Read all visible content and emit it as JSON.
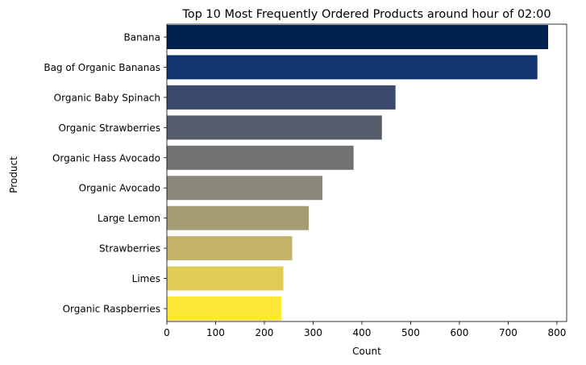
{
  "chart_data": {
    "type": "bar",
    "orientation": "horizontal",
    "title": "Top 10 Most Frequently Ordered Products around hour of 02:00",
    "xlabel": "Count",
    "ylabel": "Product",
    "xlim": [
      0,
      820
    ],
    "x_ticks": [
      0,
      100,
      200,
      300,
      400,
      500,
      600,
      700,
      800
    ],
    "grid": false,
    "colormap": "cividis",
    "categories": [
      "Banana",
      "Bag of Organic Bananas",
      "Organic Baby Spinach",
      "Organic Strawberries",
      "Organic Hass Avocado",
      "Organic Avocado",
      "Large Lemon",
      "Strawberries",
      "Limes",
      "Organic Raspberries"
    ],
    "values": [
      782,
      760,
      469,
      441,
      383,
      319,
      291,
      257,
      239,
      235
    ],
    "colors": [
      "#00224e",
      "#123570",
      "#3b496c",
      "#575c6d",
      "#707173",
      "#8a8678",
      "#a59c74",
      "#c3b369",
      "#e1cc55",
      "#fee838"
    ]
  }
}
